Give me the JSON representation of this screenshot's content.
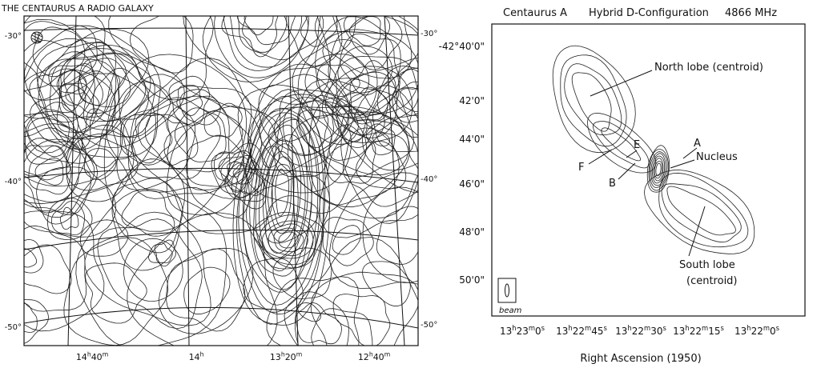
{
  "left_map": {
    "title": "THE CENTAURUS A RADIO GALAXY",
    "dec_labels_left": [
      "-30°",
      "-40°",
      "-50°"
    ],
    "dec_labels_right": [
      "-30°",
      "-40°",
      "-50°"
    ],
    "ra_labels": [
      [
        "14",
        "h",
        "40",
        "m"
      ],
      [
        "14",
        "h"
      ],
      [
        "13",
        "h",
        "20",
        "m"
      ],
      [
        "12",
        "h",
        "40",
        "m"
      ]
    ]
  },
  "right_map": {
    "title": [
      "Centaurus A",
      "Hybrid D-Configuration",
      "4866 MHz"
    ],
    "dec_labels": [
      "-42°40'0\"",
      "42'0\"",
      "44'0\"",
      "46'0\"",
      "48'0\"",
      "50'0\""
    ],
    "ra_labels": [
      [
        "13",
        "h",
        "23",
        "m",
        "0",
        "s"
      ],
      [
        "13",
        "h",
        "22",
        "m",
        "45",
        "s"
      ],
      [
        "13",
        "h",
        "22",
        "m",
        "30",
        "s"
      ],
      [
        "13",
        "h",
        "22",
        "m",
        "15",
        "s"
      ],
      [
        "13",
        "h",
        "22",
        "m",
        "0",
        "s"
      ]
    ],
    "x_axis_title": "Right Ascension (1950)",
    "annotations": {
      "north_lobe": "North lobe (centroid)",
      "e": "E",
      "a": "A",
      "nucleus": "Nucleus",
      "f": "F",
      "b": "B",
      "south_lobe": [
        "South lobe",
        "(centroid)"
      ],
      "beam": "beam"
    }
  }
}
